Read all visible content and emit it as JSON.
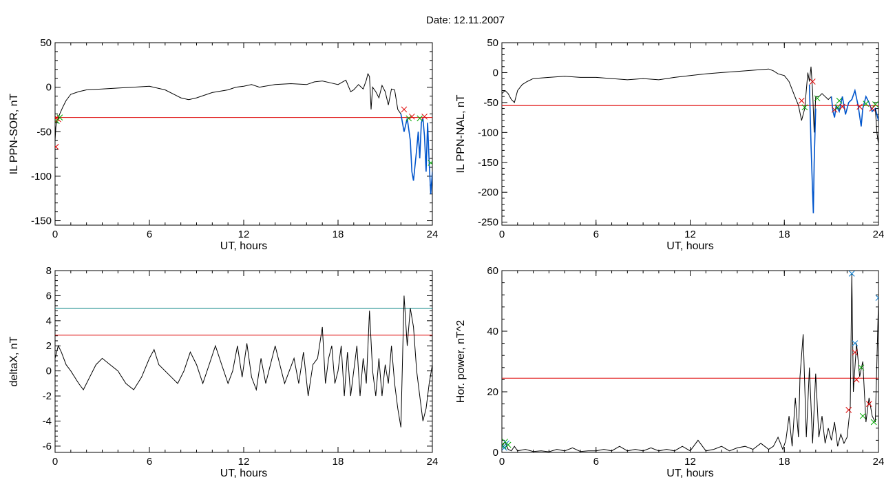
{
  "figure": {
    "title": "Date:  12.11.2007"
  },
  "colors": {
    "trace": "#000000",
    "highlight": "#0055cc",
    "threshold_red": "#dd0000",
    "threshold_teal": "#008080",
    "marker_red": "#dd0000",
    "marker_green": "#00aa00",
    "marker_blue": "#0077cc"
  },
  "chart_data": [
    {
      "type": "line",
      "title": "",
      "xlabel": "UT, hours",
      "ylabel": "IL PPN-SOR, nT",
      "xlim": [
        0,
        24
      ],
      "ylim": [
        -155,
        50
      ],
      "xticks": [
        0,
        6,
        12,
        18,
        24
      ],
      "yticks": [
        50,
        0,
        -50,
        -100,
        -150
      ],
      "series": [
        {
          "role": "trace",
          "color": "#000000",
          "x": [
            0.0,
            0.05,
            0.1,
            0.2,
            0.3,
            0.5,
            0.7,
            1.0,
            1.5,
            2.0,
            3.0,
            4.0,
            5.0,
            6.0,
            7.0,
            8.0,
            8.5,
            9.0,
            10.0,
            11.0,
            11.5,
            12.0,
            12.5,
            13.0,
            14.0,
            15.0,
            16.0,
            16.5,
            17.0,
            17.5,
            18.0,
            18.5,
            18.8,
            19.0,
            19.3,
            19.6,
            19.8,
            19.9,
            20.0,
            20.1,
            20.2,
            20.4,
            20.6,
            20.8,
            21.0,
            21.2,
            21.4,
            21.6,
            21.8,
            22.0
          ],
          "y": [
            -60,
            -45,
            -38,
            -35,
            -30,
            -22,
            -15,
            -8,
            -5,
            -3,
            -2,
            -1,
            0,
            1,
            -3,
            -12,
            -14,
            -12,
            -6,
            -3,
            0,
            1,
            3,
            0,
            3,
            4,
            3,
            6,
            7,
            5,
            3,
            8,
            -5,
            -3,
            3,
            -2,
            8,
            15,
            12,
            -25,
            0,
            -5,
            -12,
            2,
            -5,
            -20,
            -2,
            -3,
            -25,
            -30
          ]
        },
        {
          "role": "highlight",
          "color": "#0055cc",
          "x": [
            22.0,
            22.2,
            22.4,
            22.6,
            22.7,
            22.8,
            23.0,
            23.1,
            23.2,
            23.3,
            23.4,
            23.5,
            23.6,
            23.7,
            23.8,
            23.9,
            24.0
          ],
          "y": [
            -30,
            -50,
            -35,
            -60,
            -95,
            -105,
            -70,
            -50,
            -80,
            -40,
            -35,
            -55,
            -95,
            -40,
            -85,
            -120,
            -95
          ]
        }
      ],
      "threshold_lines": [
        {
          "y": -34,
          "color": "#dd0000"
        }
      ],
      "markers": [
        {
          "x": 0.05,
          "y": -35,
          "color": "#dd0000"
        },
        {
          "x": 0.1,
          "y": -38,
          "color": "#00aa00"
        },
        {
          "x": 0.2,
          "y": -36,
          "color": "#dd0000"
        },
        {
          "x": 0.3,
          "y": -34,
          "color": "#00aa00"
        },
        {
          "x": 0.05,
          "y": -67,
          "color": "#dd0000"
        },
        {
          "x": 22.2,
          "y": -25,
          "color": "#dd0000"
        },
        {
          "x": 22.5,
          "y": -35,
          "color": "#00aa00"
        },
        {
          "x": 22.7,
          "y": -33,
          "color": "#dd0000"
        },
        {
          "x": 23.2,
          "y": -35,
          "color": "#00aa00"
        },
        {
          "x": 23.5,
          "y": -33,
          "color": "#dd0000"
        },
        {
          "x": 23.9,
          "y": -85,
          "color": "#00aa00"
        }
      ]
    },
    {
      "type": "line",
      "title": "",
      "xlabel": "UT, hours",
      "ylabel": "IL PPN-NAL, nT",
      "xlim": [
        0,
        24
      ],
      "ylim": [
        -255,
        50
      ],
      "xticks": [
        0,
        6,
        12,
        18,
        24
      ],
      "yticks": [
        50,
        0,
        -50,
        -100,
        -150,
        -200,
        -250
      ],
      "series": [
        {
          "role": "trace",
          "color": "#000000",
          "x": [
            0.0,
            0.2,
            0.4,
            0.6,
            0.8,
            1.0,
            1.3,
            1.6,
            2.0,
            3.0,
            4.0,
            5.0,
            6.0,
            7.0,
            8.0,
            9.0,
            10.0,
            11.0,
            12.0,
            13.0,
            14.0,
            15.0,
            16.0,
            17.0,
            17.3,
            17.6,
            18.0,
            18.3,
            18.6,
            18.9,
            19.1,
            19.3,
            19.5,
            19.6,
            19.7,
            19.8,
            19.9,
            20.0,
            20.2,
            20.4,
            20.6,
            20.8,
            21.0
          ],
          "y": [
            -35,
            -30,
            -35,
            -45,
            -50,
            -30,
            -20,
            -15,
            -10,
            -8,
            -6,
            -8,
            -8,
            -10,
            -12,
            -10,
            -12,
            -8,
            -5,
            -2,
            0,
            2,
            4,
            6,
            3,
            -2,
            -5,
            -15,
            -35,
            -55,
            -80,
            -60,
            0,
            -15,
            10,
            -30,
            -100,
            -40,
            -40,
            -35,
            -40,
            -45,
            -40
          ]
        },
        {
          "role": "highlight",
          "color": "#0055cc",
          "x": [
            21.0,
            21.1,
            21.2,
            21.3,
            21.5,
            21.7,
            21.9,
            22.1,
            22.3,
            22.5,
            22.7,
            22.9,
            23.0,
            23.2,
            23.4,
            23.6,
            23.8,
            24.0
          ],
          "y": [
            -40,
            -65,
            -75,
            -55,
            -65,
            -40,
            -70,
            -50,
            -45,
            -30,
            -55,
            -90,
            -60,
            -40,
            -50,
            -65,
            -60,
            -80
          ]
        }
      ],
      "extra_segments": [
        {
          "role": "highlight",
          "color": "#0055cc",
          "x": [
            19.6,
            19.7,
            19.8,
            19.85,
            19.9,
            20.0
          ],
          "y": [
            -20,
            -120,
            -200,
            -235,
            -150,
            -60
          ]
        },
        {
          "role": "trace",
          "color": "#000000",
          "x": [
            23.8,
            23.9,
            24.0
          ],
          "y": [
            -60,
            -100,
            -120
          ]
        }
      ],
      "threshold_lines": [
        {
          "y": -55,
          "color": "#dd0000"
        }
      ],
      "markers": [
        {
          "x": 19.1,
          "y": -47,
          "color": "#dd0000"
        },
        {
          "x": 19.3,
          "y": -58,
          "color": "#00aa00"
        },
        {
          "x": 19.8,
          "y": -15,
          "color": "#dd0000"
        },
        {
          "x": 20.1,
          "y": -43,
          "color": "#00aa00"
        },
        {
          "x": 21.2,
          "y": -62,
          "color": "#dd0000"
        },
        {
          "x": 21.4,
          "y": -58,
          "color": "#00aa00"
        },
        {
          "x": 21.7,
          "y": -57,
          "color": "#dd0000"
        },
        {
          "x": 21.5,
          "y": -47,
          "color": "#00aa00"
        },
        {
          "x": 22.8,
          "y": -57,
          "color": "#dd0000"
        },
        {
          "x": 23.2,
          "y": -52,
          "color": "#00aa00"
        },
        {
          "x": 23.6,
          "y": -60,
          "color": "#dd0000"
        },
        {
          "x": 23.8,
          "y": -53,
          "color": "#00aa00"
        }
      ]
    },
    {
      "type": "line",
      "title": "",
      "xlabel": "UT, hours",
      "ylabel": "deltaX, nT",
      "xlim": [
        0,
        24
      ],
      "ylim": [
        -6.5,
        8
      ],
      "xticks": [
        0,
        6,
        12,
        18,
        24
      ],
      "yticks": [
        8,
        6,
        4,
        2,
        0,
        -2,
        -4,
        -6
      ],
      "series": [
        {
          "role": "trace",
          "color": "#000000",
          "x": [
            0.0,
            0.2,
            0.4,
            0.7,
            1.0,
            1.5,
            1.8,
            2.2,
            2.6,
            3.0,
            3.5,
            4.0,
            4.5,
            5.0,
            5.5,
            6.0,
            6.3,
            6.6,
            7.0,
            7.4,
            7.8,
            8.2,
            8.6,
            9.0,
            9.4,
            9.8,
            10.2,
            10.6,
            11.0,
            11.3,
            11.6,
            11.9,
            12.2,
            12.5,
            12.8,
            13.1,
            13.4,
            13.7,
            14.0,
            14.3,
            14.6,
            14.9,
            15.2,
            15.5,
            15.8,
            16.1,
            16.4,
            16.7,
            17.0,
            17.2,
            17.4,
            17.6,
            17.8,
            18.0,
            18.2,
            18.4,
            18.6,
            18.8,
            19.0,
            19.2,
            19.4,
            19.6,
            19.8,
            20.0,
            20.2,
            20.4,
            20.6,
            20.8,
            21.0,
            21.2,
            21.4,
            21.6,
            21.8,
            22.0,
            22.2,
            22.4,
            22.6,
            22.8,
            23.0,
            23.2,
            23.4,
            23.6,
            23.8,
            24.0
          ],
          "y": [
            1.0,
            2.0,
            1.5,
            0.5,
            0.0,
            -1.0,
            -1.5,
            -0.5,
            0.5,
            1.0,
            0.5,
            0.0,
            -1.0,
            -1.5,
            -0.5,
            1.0,
            1.7,
            0.5,
            0.0,
            -0.5,
            -1.0,
            0.0,
            1.5,
            0.5,
            -1.0,
            0.5,
            2.0,
            0.5,
            -1.0,
            0.0,
            2.0,
            -0.5,
            2.2,
            -0.5,
            -1.5,
            1.0,
            -1.0,
            0.5,
            2.0,
            0.5,
            -1.0,
            0.0,
            1.0,
            -1.0,
            1.5,
            -2.0,
            0.5,
            1.0,
            3.5,
            -1.0,
            1.0,
            2.0,
            -1.0,
            0.0,
            2.0,
            -2.0,
            1.5,
            -2.0,
            0.0,
            2.0,
            -2.0,
            1.0,
            -1.0,
            4.8,
            0.0,
            -2.0,
            1.0,
            -2.0,
            0.5,
            -1.0,
            2.0,
            -1.0,
            -3.0,
            -4.5,
            6.0,
            2.0,
            5.0,
            3.5,
            0.0,
            -2.0,
            -4.0,
            -3.0,
            -1.0,
            0.5
          ]
        }
      ],
      "threshold_lines": [
        {
          "y": 5.0,
          "color": "#008080"
        },
        {
          "y": 2.85,
          "color": "#dd0000"
        }
      ],
      "markers": []
    },
    {
      "type": "line",
      "title": "",
      "xlabel": "UT, hours",
      "ylabel": "Hor. power, nT^2",
      "xlim": [
        0,
        24
      ],
      "ylim": [
        0,
        60
      ],
      "xticks": [
        0,
        6,
        12,
        18,
        24
      ],
      "yticks": [
        60,
        40,
        20,
        0
      ],
      "series": [
        {
          "role": "trace",
          "color": "#000000",
          "x": [
            0.0,
            0.2,
            0.4,
            0.6,
            0.8,
            1.0,
            1.5,
            2.0,
            2.5,
            3.0,
            3.5,
            4.0,
            4.5,
            5.0,
            5.5,
            6.0,
            6.5,
            7.0,
            7.5,
            8.0,
            8.5,
            9.0,
            9.5,
            10.0,
            10.5,
            11.0,
            11.5,
            12.0,
            12.5,
            13.0,
            13.5,
            14.0,
            14.5,
            15.0,
            15.5,
            16.0,
            16.5,
            17.0,
            17.3,
            17.6,
            17.9,
            18.1,
            18.3,
            18.5,
            18.7,
            18.9,
            19.0,
            19.2,
            19.4,
            19.6,
            19.8,
            20.0,
            20.2,
            20.4,
            20.6,
            20.8,
            21.0,
            21.2,
            21.4,
            21.6,
            21.8,
            22.0,
            22.2,
            22.3,
            22.4,
            22.6,
            22.8,
            23.0,
            23.2,
            23.4,
            23.6,
            23.8,
            24.0
          ],
          "y": [
            2.0,
            3.5,
            1.0,
            0.5,
            2.0,
            0.5,
            1.0,
            0.3,
            0.5,
            0.2,
            1.0,
            0.5,
            1.5,
            0.3,
            0.5,
            0.5,
            1.0,
            0.5,
            2.0,
            0.5,
            1.0,
            0.5,
            1.5,
            0.5,
            1.0,
            0.5,
            2.0,
            0.5,
            4.0,
            0.5,
            1.0,
            2.0,
            0.5,
            1.5,
            2.0,
            1.0,
            3.0,
            1.0,
            2.0,
            5.0,
            1.0,
            4.0,
            12.0,
            2.0,
            18.0,
            5.0,
            25.0,
            39.0,
            5.0,
            28.0,
            3.0,
            26.0,
            5.0,
            12.0,
            3.0,
            8.0,
            4.0,
            10.0,
            2.0,
            6.0,
            3.0,
            5.0,
            15.0,
            59.0,
            20.0,
            36.0,
            25.0,
            30.0,
            10.0,
            18.0,
            12.0,
            10.0,
            50.0
          ]
        }
      ],
      "threshold_lines": [
        {
          "y": 24.5,
          "color": "#dd0000"
        }
      ],
      "markers": [
        {
          "x": 0.1,
          "y": 2.0,
          "color": "#00aa00"
        },
        {
          "x": 0.2,
          "y": 3.5,
          "color": "#00aa00"
        },
        {
          "x": 0.3,
          "y": 3.0,
          "color": "#0077cc"
        },
        {
          "x": 0.4,
          "y": 2.5,
          "color": "#00aa00"
        },
        {
          "x": 0.15,
          "y": 1.5,
          "color": "#0077cc"
        },
        {
          "x": 22.3,
          "y": 59.0,
          "color": "#0077cc"
        },
        {
          "x": 22.5,
          "y": 36.0,
          "color": "#0077cc"
        },
        {
          "x": 22.5,
          "y": 33.0,
          "color": "#dd0000"
        },
        {
          "x": 22.1,
          "y": 14.0,
          "color": "#dd0000"
        },
        {
          "x": 22.6,
          "y": 24.0,
          "color": "#dd0000"
        },
        {
          "x": 22.9,
          "y": 28.0,
          "color": "#00aa00"
        },
        {
          "x": 23.0,
          "y": 12.0,
          "color": "#00aa00"
        },
        {
          "x": 23.4,
          "y": 16.0,
          "color": "#dd0000"
        },
        {
          "x": 23.7,
          "y": 10.0,
          "color": "#00aa00"
        },
        {
          "x": 24.0,
          "y": 51.0,
          "color": "#0077cc"
        }
      ]
    }
  ]
}
